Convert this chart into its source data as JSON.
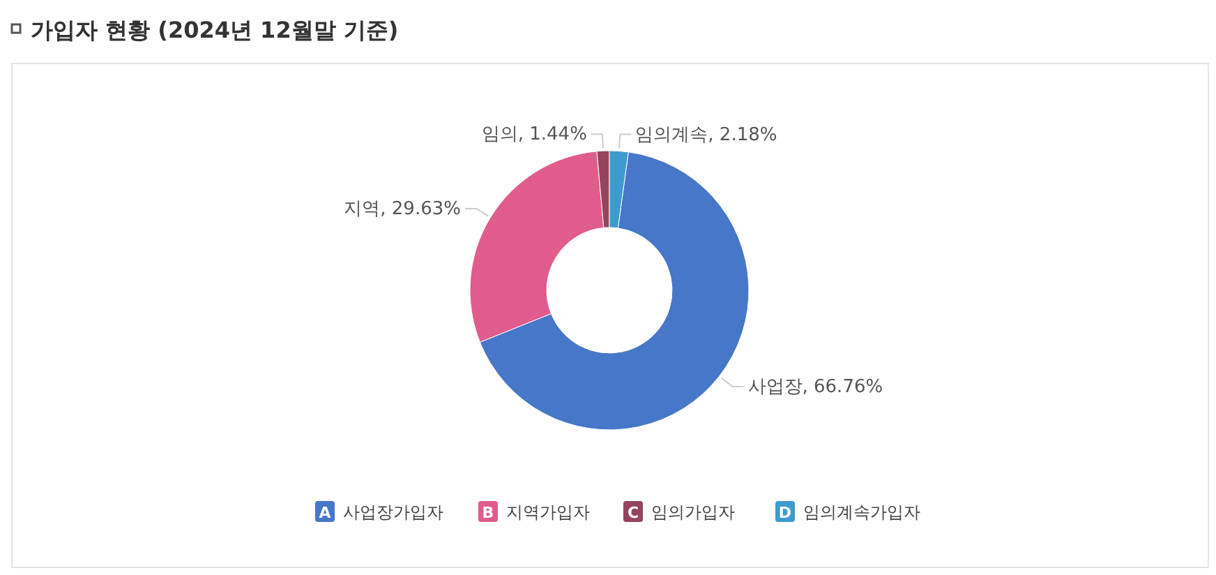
{
  "chart_data": {
    "type": "donut",
    "title": "가입자 현황 (2024년 12월말 기준)",
    "categories": [
      "사업장가입자",
      "지역가입자",
      "임의가입자",
      "임의계속가입자"
    ],
    "annotations": [
      "A",
      "B",
      "C",
      "D"
    ],
    "values": [
      66.76,
      29.63,
      1.44,
      2.18
    ],
    "colors": [
      "#4677c8",
      "#e05c8c",
      "#95445f",
      "#3d9bcf"
    ],
    "value_labels": [
      "사업장, 66.76%",
      "지역, 29.63%",
      "임의, 1.44%",
      "임의계속, 2.18%"
    ],
    "legend": "bottom"
  }
}
